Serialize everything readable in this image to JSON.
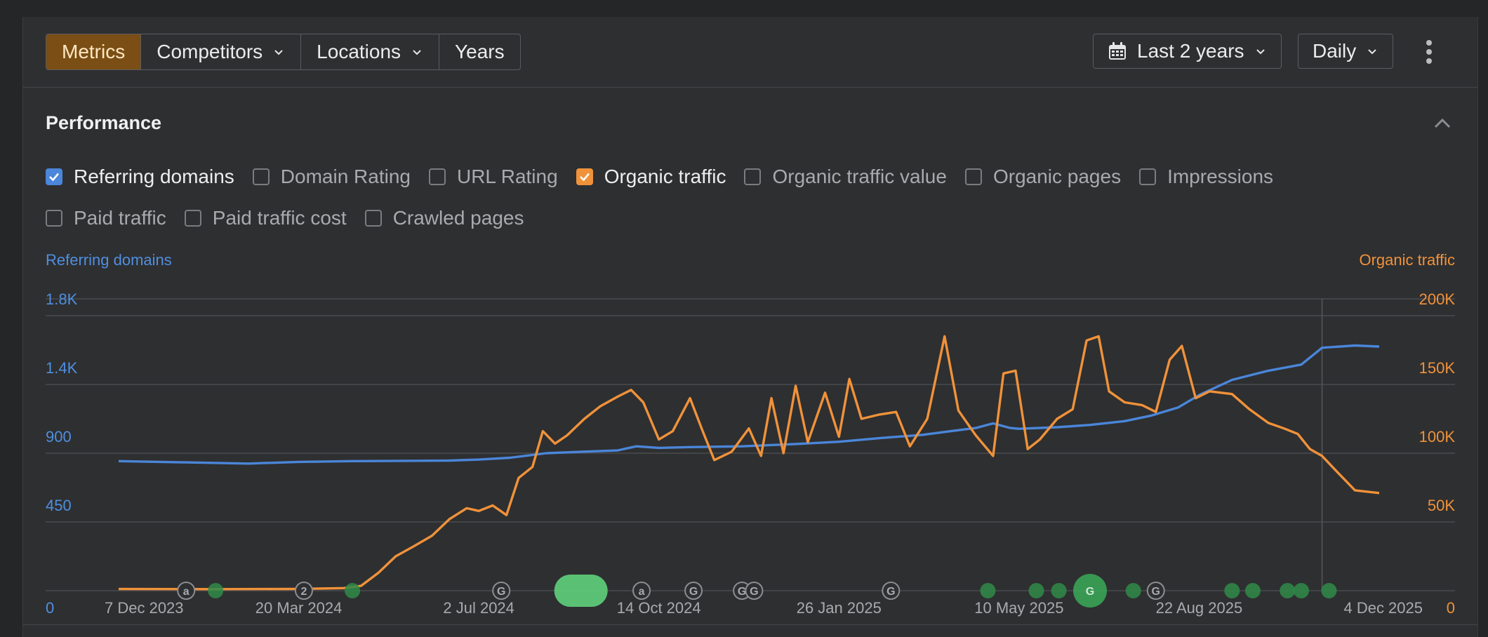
{
  "toolbar": {
    "segments": [
      "Metrics",
      "Competitors",
      "Locations",
      "Years"
    ],
    "date_range": "Last 2 years",
    "interval": "Daily"
  },
  "performance": {
    "title": "Performance",
    "checkboxes_row1": [
      {
        "label": "Referring domains",
        "checked": true,
        "color": "#4a86d9"
      },
      {
        "label": "Domain Rating",
        "checked": false
      },
      {
        "label": "URL Rating",
        "checked": false
      },
      {
        "label": "Organic traffic",
        "checked": true,
        "color": "#f0923a"
      },
      {
        "label": "Organic traffic value",
        "checked": false
      },
      {
        "label": "Organic pages",
        "checked": false
      },
      {
        "label": "Impressions",
        "checked": false
      }
    ],
    "checkboxes_row2": [
      {
        "label": "Paid traffic",
        "checked": false
      },
      {
        "label": "Paid traffic cost",
        "checked": false
      },
      {
        "label": "Crawled pages",
        "checked": false
      }
    ]
  },
  "chart_data": {
    "type": "line",
    "left_axis_label": "Referring domains",
    "right_axis_label": "Organic traffic",
    "left_ticks": [
      "0",
      "450",
      "900",
      "1.4K",
      "1.8K"
    ],
    "right_ticks": [
      "0",
      "50K",
      "100K",
      "150K",
      "200K"
    ],
    "y_left_range": [
      0,
      1800
    ],
    "y_right_range": [
      0,
      200000
    ],
    "x_ticks": [
      "7 Dec 2023",
      "20 Mar 2024",
      "2 Jul 2024",
      "14 Oct 2024",
      "26 Jan 2025",
      "10 May 2025",
      "22 Aug 2025",
      "4 Dec 2025"
    ],
    "x_range": [
      "2023-12-07",
      "2025-12-04"
    ],
    "grid": true,
    "colors": {
      "referring_domains": "#4a86d9",
      "organic_traffic": "#f0923a"
    },
    "series": [
      {
        "name": "Referring domains",
        "axis": "left",
        "points": [
          [
            "2023-12-07",
            848
          ],
          [
            "2024-01-15",
            840
          ],
          [
            "2024-02-20",
            832
          ],
          [
            "2024-03-20",
            843
          ],
          [
            "2024-04-20",
            848
          ],
          [
            "2024-05-20",
            850
          ],
          [
            "2024-06-15",
            852
          ],
          [
            "2024-07-02",
            858
          ],
          [
            "2024-07-20",
            870
          ],
          [
            "2024-08-10",
            900
          ],
          [
            "2024-09-01",
            910
          ],
          [
            "2024-09-20",
            918
          ],
          [
            "2024-10-01",
            945
          ],
          [
            "2024-10-14",
            935
          ],
          [
            "2024-11-01",
            940
          ],
          [
            "2024-12-01",
            945
          ],
          [
            "2025-01-01",
            960
          ],
          [
            "2025-01-26",
            975
          ],
          [
            "2025-02-20",
            1000
          ],
          [
            "2025-03-15",
            1020
          ],
          [
            "2025-04-01",
            1045
          ],
          [
            "2025-04-15",
            1065
          ],
          [
            "2025-04-25",
            1095
          ],
          [
            "2025-05-05",
            1065
          ],
          [
            "2025-05-10",
            1060
          ],
          [
            "2025-06-01",
            1070
          ],
          [
            "2025-06-20",
            1085
          ],
          [
            "2025-07-10",
            1110
          ],
          [
            "2025-07-25",
            1145
          ],
          [
            "2025-08-10",
            1200
          ],
          [
            "2025-08-22",
            1280
          ],
          [
            "2025-09-10",
            1380
          ],
          [
            "2025-10-01",
            1440
          ],
          [
            "2025-10-20",
            1480
          ],
          [
            "2025-11-01",
            1590
          ],
          [
            "2025-11-20",
            1605
          ],
          [
            "2025-12-04",
            1598
          ]
        ]
      },
      {
        "name": "Organic traffic",
        "axis": "right",
        "points": [
          [
            "2023-12-07",
            1200
          ],
          [
            "2024-02-01",
            1100
          ],
          [
            "2024-03-20",
            1300
          ],
          [
            "2024-04-15",
            1900
          ],
          [
            "2024-04-25",
            3500
          ],
          [
            "2024-05-05",
            13000
          ],
          [
            "2024-05-15",
            25000
          ],
          [
            "2024-05-25",
            32000
          ],
          [
            "2024-06-05",
            40000
          ],
          [
            "2024-06-15",
            52000
          ],
          [
            "2024-06-25",
            60000
          ],
          [
            "2024-07-02",
            58000
          ],
          [
            "2024-07-10",
            62000
          ],
          [
            "2024-07-18",
            55000
          ],
          [
            "2024-07-25",
            82000
          ],
          [
            "2024-08-02",
            90000
          ],
          [
            "2024-08-08",
            116000
          ],
          [
            "2024-08-15",
            107000
          ],
          [
            "2024-08-22",
            113000
          ],
          [
            "2024-09-01",
            125000
          ],
          [
            "2024-09-10",
            134000
          ],
          [
            "2024-09-20",
            141000
          ],
          [
            "2024-09-28",
            146000
          ],
          [
            "2024-10-05",
            137000
          ],
          [
            "2024-10-14",
            110000
          ],
          [
            "2024-10-22",
            116000
          ],
          [
            "2024-11-01",
            140000
          ],
          [
            "2024-11-08",
            117000
          ],
          [
            "2024-11-15",
            95000
          ],
          [
            "2024-11-25",
            101000
          ],
          [
            "2024-12-05",
            118000
          ],
          [
            "2024-12-12",
            98000
          ],
          [
            "2024-12-18",
            140000
          ],
          [
            "2024-12-25",
            100000
          ],
          [
            "2025-01-01",
            149000
          ],
          [
            "2025-01-08",
            108000
          ],
          [
            "2025-01-18",
            144000
          ],
          [
            "2025-01-26",
            112000
          ],
          [
            "2025-02-01",
            154000
          ],
          [
            "2025-02-08",
            125000
          ],
          [
            "2025-02-18",
            128000
          ],
          [
            "2025-02-28",
            130000
          ],
          [
            "2025-03-08",
            105000
          ],
          [
            "2025-03-18",
            125000
          ],
          [
            "2025-03-28",
            185000
          ],
          [
            "2025-04-05",
            131000
          ],
          [
            "2025-04-15",
            113000
          ],
          [
            "2025-04-25",
            98000
          ],
          [
            "2025-05-01",
            158000
          ],
          [
            "2025-05-08",
            160000
          ],
          [
            "2025-05-15",
            103000
          ],
          [
            "2025-05-22",
            110000
          ],
          [
            "2025-06-01",
            125000
          ],
          [
            "2025-06-10",
            132000
          ],
          [
            "2025-06-18",
            182000
          ],
          [
            "2025-06-25",
            185000
          ],
          [
            "2025-07-01",
            145000
          ],
          [
            "2025-07-10",
            137000
          ],
          [
            "2025-07-20",
            135000
          ],
          [
            "2025-07-28",
            130000
          ],
          [
            "2025-08-05",
            168000
          ],
          [
            "2025-08-12",
            178000
          ],
          [
            "2025-08-20",
            140000
          ],
          [
            "2025-08-28",
            145000
          ],
          [
            "2025-09-10",
            143000
          ],
          [
            "2025-09-20",
            132000
          ],
          [
            "2025-10-01",
            122000
          ],
          [
            "2025-10-10",
            118000
          ],
          [
            "2025-10-18",
            114000
          ],
          [
            "2025-10-25",
            103000
          ],
          [
            "2025-11-01",
            98000
          ],
          [
            "2025-11-10",
            86000
          ],
          [
            "2025-11-20",
            73000
          ],
          [
            "2025-12-04",
            71000
          ]
        ]
      }
    ],
    "annotations": [
      {
        "date": "2024-01-15",
        "label": "a",
        "kind": "outline"
      },
      {
        "date": "2024-02-01",
        "label": "",
        "kind": "green"
      },
      {
        "date": "2024-03-23",
        "label": "2",
        "kind": "outline"
      },
      {
        "date": "2024-04-20",
        "label": "",
        "kind": "green"
      },
      {
        "date": "2024-07-15",
        "label": "G",
        "kind": "outline"
      },
      {
        "date": "2024-08-30",
        "label": "",
        "kind": "green-large"
      },
      {
        "date": "2024-10-04",
        "label": "a",
        "kind": "outline"
      },
      {
        "date": "2024-11-03",
        "label": "G",
        "kind": "outline"
      },
      {
        "date": "2024-12-01",
        "label": "G",
        "kind": "outline"
      },
      {
        "date": "2024-12-08",
        "label": "G",
        "kind": "outline"
      },
      {
        "date": "2025-02-25",
        "label": "G",
        "kind": "outline"
      },
      {
        "date": "2025-04-22",
        "label": "",
        "kind": "green"
      },
      {
        "date": "2025-05-20",
        "label": "",
        "kind": "green"
      },
      {
        "date": "2025-06-02",
        "label": "",
        "kind": "green"
      },
      {
        "date": "2025-06-20",
        "label": "G",
        "kind": "green-large"
      },
      {
        "date": "2025-07-15",
        "label": "",
        "kind": "green"
      },
      {
        "date": "2025-07-28",
        "label": "G",
        "kind": "outline"
      },
      {
        "date": "2025-09-10",
        "label": "",
        "kind": "green"
      },
      {
        "date": "2025-09-22",
        "label": "",
        "kind": "green"
      },
      {
        "date": "2025-10-12",
        "label": "",
        "kind": "green"
      },
      {
        "date": "2025-10-20",
        "label": "",
        "kind": "green"
      },
      {
        "date": "2025-11-05",
        "label": "",
        "kind": "green"
      }
    ]
  }
}
